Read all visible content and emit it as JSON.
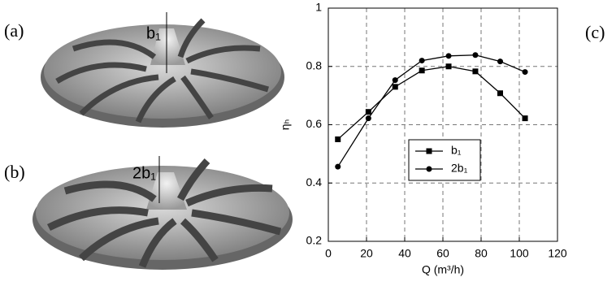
{
  "panel_labels": [
    "(a)",
    "(b)",
    "(c)"
  ],
  "annotations": [
    "b₁",
    "2b₁"
  ],
  "chart_data": {
    "type": "line",
    "x_label": "Q (m³/h)",
    "y_label": "ηₕ",
    "x": [
      5,
      21,
      35,
      49,
      63,
      77,
      90,
      103
    ],
    "series": [
      {
        "name": "b₁",
        "color": "#000000",
        "marker": "square",
        "values": [
          0.55,
          0.644,
          0.73,
          0.786,
          0.8,
          0.783,
          0.708,
          0.622
        ]
      },
      {
        "name": "2b₁",
        "color": "#000000",
        "marker": "circle",
        "values": [
          0.456,
          0.622,
          0.753,
          0.82,
          0.836,
          0.839,
          0.817,
          0.781
        ]
      }
    ],
    "xlim": [
      0,
      120
    ],
    "xticks": [
      0,
      20,
      40,
      60,
      80,
      100,
      120
    ],
    "ylim": [
      0.2,
      1
    ],
    "yticks": [
      0.2,
      0.4,
      0.6,
      0.8,
      1
    ],
    "grid": true
  }
}
